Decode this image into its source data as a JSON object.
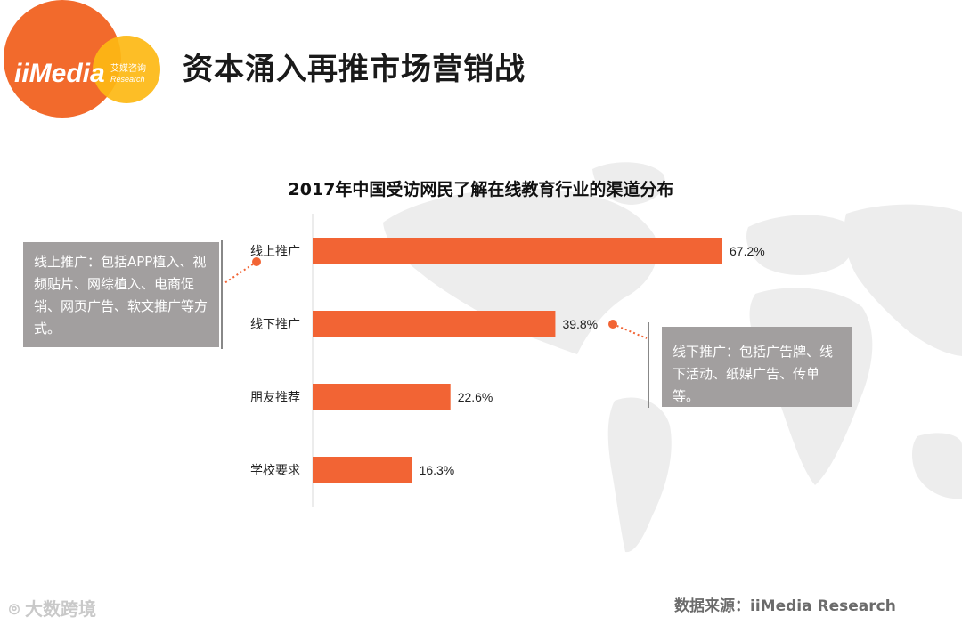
{
  "header": {
    "title": "资本涌入再推市场营销战",
    "logo_text": "iiMedia",
    "logo_sub_cn": "艾媒咨询",
    "logo_sub_en": "Research"
  },
  "chart_data": {
    "type": "bar",
    "orientation": "horizontal",
    "title": "2017年中国受访网民了解在线教育行业的渠道分布",
    "categories": [
      "线上推广",
      "线下推广",
      "朋友推荐",
      "学校要求"
    ],
    "values": [
      67.2,
      39.8,
      22.6,
      16.3
    ],
    "data_labels": [
      "67.2%",
      "39.8%",
      "22.6%",
      "16.3%"
    ],
    "unit": "%",
    "xlim": [
      0,
      70
    ],
    "grid": false,
    "bar_color": "#f26434"
  },
  "callouts": {
    "online": "线上推广：包括APP植入、视频贴片、网综植入、电商促销、网页广告、软文推广等方式。",
    "offline": "线下推广：包括广告牌、线下活动、纸媒广告、传单等。"
  },
  "footer": {
    "source": "数据来源：iiMedia Research",
    "watermark": "大数跨境"
  },
  "colors": {
    "accent": "#f26434",
    "logo_orange": "#f26a2c",
    "logo_yellow": "#fdb913",
    "callout_bg": "#a29f9f",
    "map": "#ededed"
  }
}
